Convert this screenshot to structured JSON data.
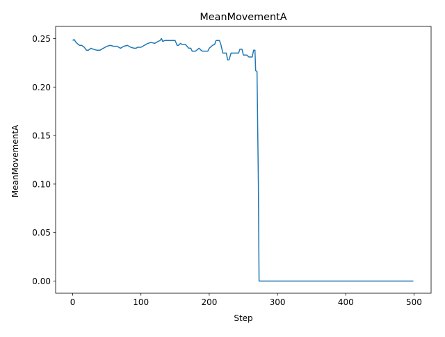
{
  "chart_data": {
    "type": "line",
    "title": "MeanMovementA",
    "xlabel": "Step",
    "ylabel": "MeanMovementA",
    "xlim": [
      -25,
      525
    ],
    "ylim": [
      -0.0125,
      0.2625
    ],
    "xticks": [
      0,
      100,
      200,
      300,
      400,
      500
    ],
    "yticks": [
      0.0,
      0.05,
      0.1,
      0.15,
      0.2,
      0.25
    ],
    "xtick_labels": [
      "0",
      "100",
      "200",
      "300",
      "400",
      "500"
    ],
    "ytick_labels": [
      "0.00",
      "0.05",
      "0.10",
      "0.15",
      "0.20",
      "0.25"
    ],
    "grid": false,
    "series": [
      {
        "color": "#1f77b4",
        "x": [
          0,
          2,
          5,
          8,
          10,
          13,
          17,
          20,
          23,
          27,
          30,
          35,
          40,
          45,
          50,
          55,
          60,
          65,
          70,
          75,
          80,
          85,
          90,
          93,
          95,
          100,
          105,
          110,
          115,
          120,
          125,
          128,
          130,
          132,
          135,
          140,
          145,
          150,
          153,
          155,
          158,
          160,
          165,
          170,
          173,
          175,
          178,
          180,
          185,
          188,
          190,
          195,
          198,
          200,
          205,
          208,
          210,
          213,
          215,
          217,
          220,
          225,
          227,
          229,
          232,
          235,
          240,
          243,
          245,
          248,
          250,
          253,
          255,
          258,
          260,
          263,
          265,
          267,
          268,
          270,
          272,
          273,
          275,
          300,
          350,
          400,
          450,
          499
        ],
        "y": [
          0.248,
          0.249,
          0.246,
          0.244,
          0.243,
          0.243,
          0.241,
          0.238,
          0.238,
          0.24,
          0.239,
          0.238,
          0.238,
          0.24,
          0.242,
          0.243,
          0.242,
          0.242,
          0.24,
          0.242,
          0.243,
          0.241,
          0.24,
          0.24,
          0.241,
          0.241,
          0.243,
          0.245,
          0.246,
          0.245,
          0.247,
          0.248,
          0.25,
          0.247,
          0.248,
          0.248,
          0.248,
          0.248,
          0.243,
          0.243,
          0.245,
          0.244,
          0.244,
          0.24,
          0.24,
          0.237,
          0.237,
          0.237,
          0.24,
          0.238,
          0.237,
          0.237,
          0.237,
          0.24,
          0.243,
          0.244,
          0.248,
          0.248,
          0.248,
          0.244,
          0.235,
          0.235,
          0.228,
          0.228,
          0.235,
          0.235,
          0.235,
          0.235,
          0.239,
          0.239,
          0.233,
          0.233,
          0.233,
          0.231,
          0.231,
          0.231,
          0.238,
          0.238,
          0.217,
          0.216,
          0.1,
          0.0,
          0.0,
          0.0,
          0.0,
          0.0,
          0.0,
          0.0
        ]
      }
    ]
  }
}
